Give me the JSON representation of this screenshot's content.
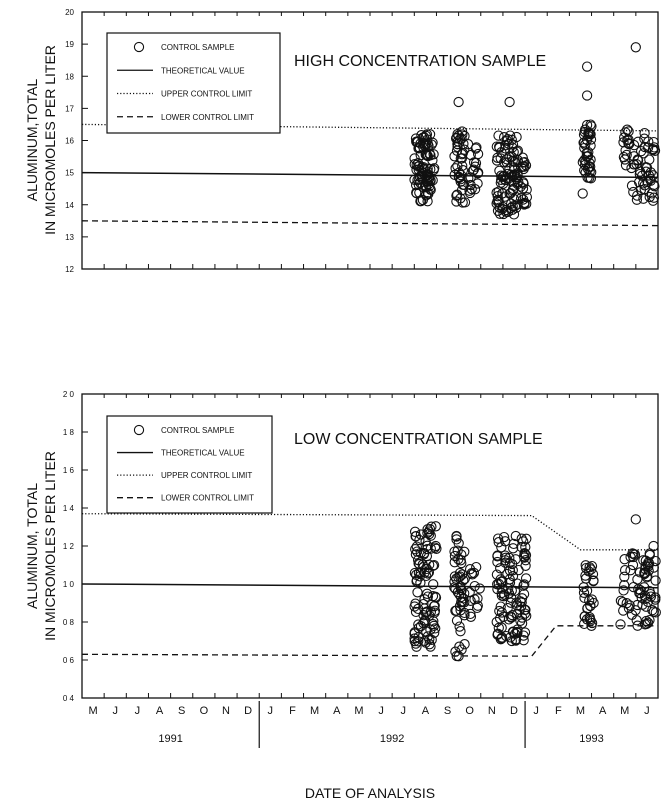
{
  "chart_data": [
    {
      "type": "scatter",
      "title": "HIGH CONCENTRATION SAMPLE",
      "ylabel_line1": "ALUMINUM,TOTAL",
      "ylabel_line2": "IN MICROMOLES PER LITER",
      "ylim": [
        12,
        20
      ],
      "yticks": [
        "12",
        "13",
        "14",
        "15",
        "16",
        "17",
        "18",
        "19",
        "20"
      ],
      "xlim": [
        0,
        26
      ],
      "legend": [
        {
          "name": "CONTROL SAMPLE",
          "style": "circle"
        },
        {
          "name": "THEORETICAL VALUE",
          "style": "solid"
        },
        {
          "name": "UPPER CONTROL LIMIT",
          "style": "dotted"
        },
        {
          "name": "LOWER CONTROL LIMIT",
          "style": "dashed"
        }
      ],
      "series": [
        {
          "name": "THEORETICAL VALUE",
          "style": "solid",
          "x": [
            0,
            26
          ],
          "y": [
            15.0,
            14.85
          ]
        },
        {
          "name": "UPPER CONTROL LIMIT",
          "style": "dotted",
          "x": [
            0,
            26
          ],
          "y": [
            16.5,
            16.3
          ]
        },
        {
          "name": "LOWER CONTROL LIMIT",
          "style": "dashed",
          "x": [
            0,
            26
          ],
          "y": [
            13.5,
            13.35
          ]
        },
        {
          "name": "CONTROL SAMPLE",
          "style": "circle",
          "clusters": [
            {
              "x": [
                15.0,
                15.9
              ],
              "y": [
                14.1,
                16.2
              ],
              "n": 90
            },
            {
              "x": [
                16.8,
                17.3
              ],
              "y": [
                14.0,
                16.3
              ],
              "n": 40
            },
            {
              "x": [
                17.4,
                18.0
              ],
              "y": [
                14.3,
                15.9
              ],
              "n": 20
            },
            {
              "x": [
                18.7,
                19.7
              ],
              "y": [
                13.7,
                16.2
              ],
              "n": 90
            },
            {
              "x": [
                19.8,
                20.1
              ],
              "y": [
                14.0,
                15.5
              ],
              "n": 20
            },
            {
              "x": [
                22.6,
                23.0
              ],
              "y": [
                14.8,
                16.5
              ],
              "n": 40
            },
            {
              "x": [
                24.4,
                24.7
              ],
              "y": [
                15.0,
                16.4
              ],
              "n": 15
            },
            {
              "x": [
                24.8,
                25.9
              ],
              "y": [
                14.1,
                16.3
              ],
              "n": 50
            }
          ],
          "points": [
            {
              "x": 17.0,
              "y": 17.2
            },
            {
              "x": 19.3,
              "y": 17.2
            },
            {
              "x": 22.8,
              "y": 17.4
            },
            {
              "x": 22.8,
              "y": 18.3
            },
            {
              "x": 25.0,
              "y": 18.9
            },
            {
              "x": 22.6,
              "y": 14.35
            },
            {
              "x": 16.9,
              "y": 14.1
            },
            {
              "x": 19.5,
              "y": 13.7
            }
          ]
        }
      ]
    },
    {
      "type": "scatter",
      "title": "LOW CONCENTRATION SAMPLE",
      "ylabel_line1": "ALUMINUM, TOTAL",
      "ylabel_line2": "IN MICROMOLES PER LITER",
      "ylim": [
        0.4,
        2.0
      ],
      "yticks": [
        "0 4",
        "0 6",
        "0 8",
        "1 0",
        "1 2",
        "1 4",
        "1 6",
        "1 8",
        "2 0"
      ],
      "xlim": [
        0,
        26
      ],
      "legend": [
        {
          "name": "CONTROL SAMPLE",
          "style": "circle"
        },
        {
          "name": "THEORETICAL VALUE",
          "style": "solid"
        },
        {
          "name": "UPPER CONTROL LIMIT",
          "style": "dotted"
        },
        {
          "name": "LOWER CONTROL LIMIT",
          "style": "dashed"
        }
      ],
      "series": [
        {
          "name": "THEORETICAL VALUE",
          "style": "solid",
          "x": [
            0,
            26
          ],
          "y": [
            1.0,
            0.98
          ]
        },
        {
          "name": "UPPER CONTROL LIMIT",
          "style": "dotted",
          "x": [
            0,
            20.3,
            22.5,
            26
          ],
          "y": [
            1.37,
            1.36,
            1.18,
            1.18
          ]
        },
        {
          "name": "LOWER CONTROL LIMIT",
          "style": "dashed",
          "x": [
            0,
            20.3,
            21.4,
            26
          ],
          "y": [
            0.63,
            0.62,
            0.78,
            0.78
          ]
        },
        {
          "name": "CONTROL SAMPLE",
          "style": "circle",
          "clusters": [
            {
              "x": [
                15.0,
                16.0
              ],
              "y": [
                0.67,
                1.33
              ],
              "n": 100
            },
            {
              "x": [
                16.8,
                17.3
              ],
              "y": [
                0.62,
                1.27
              ],
              "n": 50
            },
            {
              "x": [
                17.5,
                18.0
              ],
              "y": [
                0.8,
                1.1
              ],
              "n": 15
            },
            {
              "x": [
                18.7,
                20.1
              ],
              "y": [
                0.7,
                1.27
              ],
              "n": 110
            },
            {
              "x": [
                22.6,
                23.1
              ],
              "y": [
                0.78,
                1.1
              ],
              "n": 30
            },
            {
              "x": [
                24.3,
                25.9
              ],
              "y": [
                0.78,
                1.2
              ],
              "n": 70
            }
          ],
          "points": [
            {
              "x": 25.0,
              "y": 1.34
            },
            {
              "x": 15.1,
              "y": 0.67
            },
            {
              "x": 17.0,
              "y": 0.62
            },
            {
              "x": 19.4,
              "y": 0.7
            },
            {
              "x": 23.0,
              "y": 0.78
            },
            {
              "x": 25.8,
              "y": 1.2
            }
          ]
        }
      ]
    }
  ],
  "xaxis": {
    "months": [
      "M",
      "J",
      "J",
      "A",
      "S",
      "O",
      "N",
      "D",
      "J",
      "F",
      "M",
      "A",
      "M",
      "J",
      "J",
      "A",
      "S",
      "O",
      "N",
      "D",
      "J",
      "F",
      "M",
      "A",
      "M",
      "J"
    ],
    "years": [
      {
        "label": "1991",
        "start": 0,
        "end": 8
      },
      {
        "label": "1992",
        "start": 8,
        "end": 20
      },
      {
        "label": "1993",
        "start": 20,
        "end": 26
      }
    ],
    "label": "DATE OF ANALYSIS"
  }
}
